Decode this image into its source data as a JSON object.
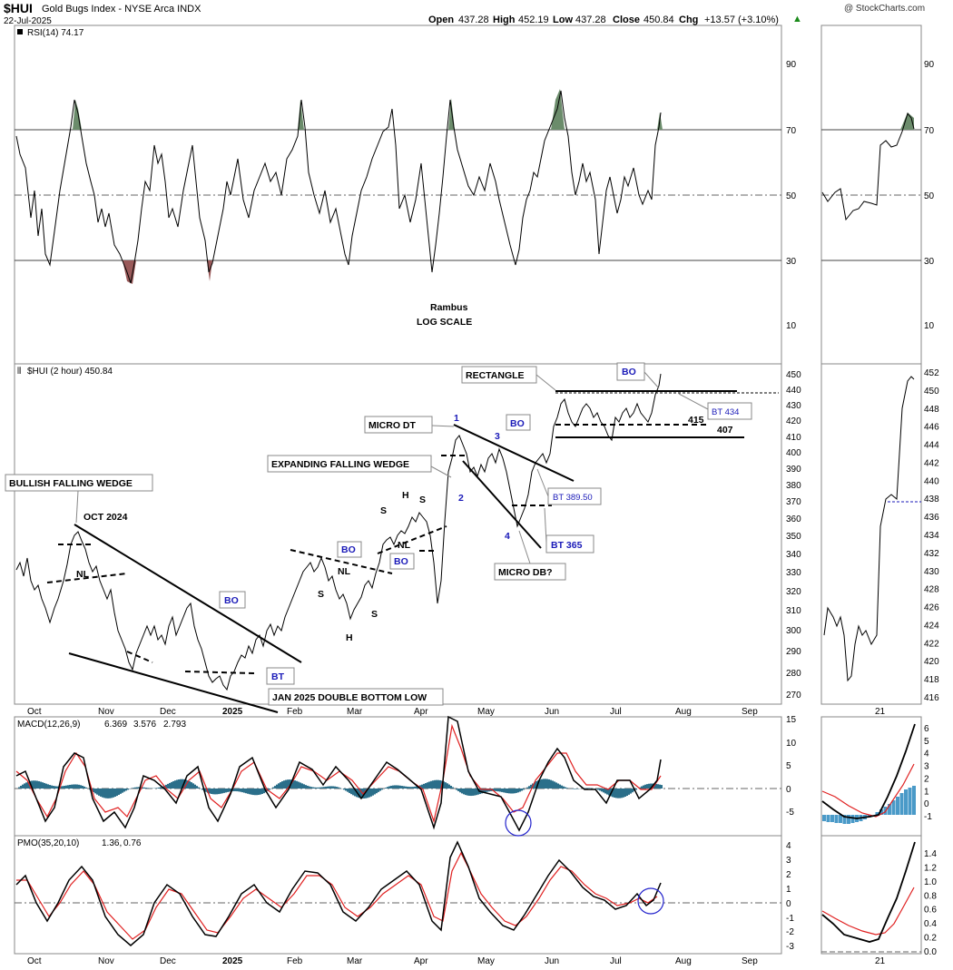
{
  "header": {
    "symbol": "$HUI",
    "name": "Gold Bugs Index - NYSE Arca INDX",
    "date": "22-Jul-2025",
    "watermark": "@ StockCharts.com",
    "open_label": "Open",
    "open": "437.28",
    "high_label": "High",
    "high": "452.19",
    "low_label": "Low",
    "low": "437.28",
    "close_label": "Close",
    "close": "450.84",
    "chg_label": "Chg",
    "chg": "+13.57 (+3.10%)",
    "chg_icon": "up-triangle-icon"
  },
  "rsi": {
    "legend": "RSI(14) 74.17",
    "axis_ticks": [
      "90",
      "70",
      "50",
      "30",
      "10"
    ],
    "center_note_1": "Rambus",
    "center_note_2": "LOG SCALE"
  },
  "price": {
    "legend": "$HUI (2 hour) 450.84",
    "axis_ticks": [
      "450",
      "440",
      "430",
      "420",
      "410",
      "400",
      "390",
      "380",
      "370",
      "360",
      "350",
      "340",
      "330",
      "320",
      "310",
      "300",
      "290",
      "280",
      "270"
    ],
    "right_axis_ticks": [
      "452",
      "450",
      "448",
      "446",
      "444",
      "442",
      "440",
      "438",
      "436",
      "434",
      "432",
      "430",
      "428",
      "426",
      "424",
      "422",
      "420",
      "418",
      "416"
    ],
    "annotations": {
      "bullish_falling_wedge": "BULLISH FALLING WEDGE",
      "oct_2024": "OCT 2024",
      "nl1": "NL",
      "bo1": "BO",
      "bt1": "BT",
      "jan_double_bottom": "JAN 2025 DOUBLE BOTTOM LOW",
      "bo2": "BO",
      "bo3": "BO",
      "s1": "S",
      "nl2": "NL",
      "s2": "S",
      "h1": "H",
      "s3": "S",
      "h2": "H",
      "s4": "S",
      "nl3": "NL",
      "expanding_falling_wedge": "EXPANDING FALLING WEDGE",
      "micro_dt": "MICRO DT",
      "w1": "1",
      "w2": "2",
      "w3": "3",
      "w4": "4",
      "bo4": "BO",
      "bt_389": "BT 389.50",
      "bt_365": "BT 365",
      "micro_db": "MICRO DB?",
      "rectangle": "RECTANGLE",
      "bo5": "BO",
      "bt_434": "BT 434",
      "lvl_415": "415",
      "lvl_407": "407"
    }
  },
  "macd": {
    "legend_name": "MACD(12,26,9)",
    "legend_v1": "6.369",
    "legend_v2": "3.576",
    "legend_v3": "2.793",
    "axis_ticks": [
      "15",
      "10",
      "5",
      "0",
      "-5"
    ],
    "right_axis_ticks": [
      "6",
      "5",
      "4",
      "3",
      "2",
      "1",
      "0",
      "-1"
    ]
  },
  "pmo": {
    "legend_name": "PMO(35,20,10)",
    "legend_v1": "1.36,",
    "legend_v2": "0.76",
    "axis_ticks": [
      "4",
      "3",
      "2",
      "1",
      "0",
      "-1",
      "-2",
      "-3"
    ],
    "right_axis_ticks": [
      "1.4",
      "1.2",
      "1.0",
      "0.8",
      "0.6",
      "0.4",
      "0.2",
      "0.0"
    ]
  },
  "xaxis": {
    "labels": [
      "Oct",
      "Nov",
      "Dec",
      "2025",
      "Feb",
      "Mar",
      "Apr",
      "May",
      "Jun",
      "Jul",
      "Aug",
      "Sep"
    ],
    "right_label": "21"
  },
  "colors": {
    "rsi_overbought": "#5a7a5a",
    "rsi_oversold": "#8a4a4a",
    "macd_hist": "#2b6f8a",
    "signal_line": "#e02020",
    "annotation_blue": "#1a1ab8",
    "circle": "#2222cc"
  },
  "chart_data": {
    "type": "line",
    "title": "$HUI Gold Bugs Index - NYSE Arca INDX",
    "scale": "log",
    "x_range": [
      "Oct 2024",
      "Sep 2025"
    ],
    "ylim": [
      270,
      452
    ],
    "price_path": {
      "dates": [
        "Oct",
        "Nov",
        "Dec",
        "2025",
        "Feb",
        "Mar",
        "Apr",
        "May",
        "Jun",
        "Jul",
        "Jul-22"
      ],
      "values": [
        330,
        350,
        300,
        280,
        300,
        330,
        340,
        415,
        375,
        430,
        450.84
      ]
    },
    "rsi_current": 74.17,
    "macd_current": [
      6.369,
      3.576,
      2.793
    ],
    "pmo_current": [
      1.36,
      0.76
    ],
    "levels": {
      "rectangle_top": 437,
      "rectangle_mid": 415,
      "rectangle_bottom": 407,
      "bt": 434
    }
  }
}
